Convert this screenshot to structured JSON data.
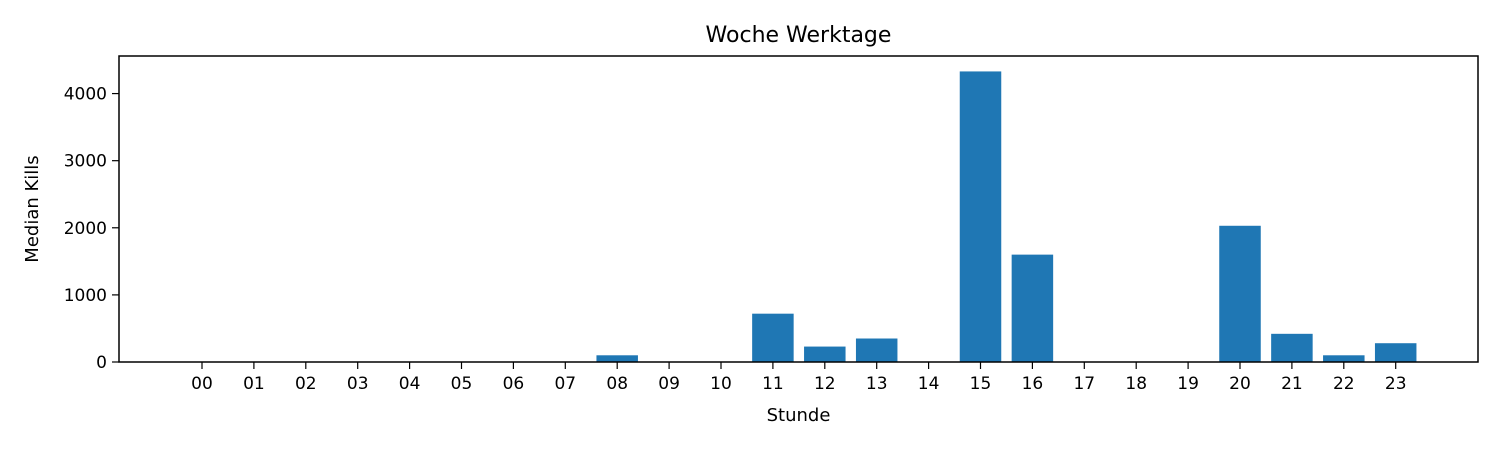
{
  "chart_data": {
    "type": "bar",
    "title": "Woche Werktage",
    "xlabel": "Stunde",
    "ylabel": "Median Kills",
    "categories": [
      "00",
      "01",
      "02",
      "03",
      "04",
      "05",
      "06",
      "07",
      "08",
      "09",
      "10",
      "11",
      "12",
      "13",
      "14",
      "15",
      "16",
      "17",
      "18",
      "19",
      "20",
      "21",
      "22",
      "23"
    ],
    "values": [
      0,
      0,
      0,
      0,
      0,
      0,
      0,
      0,
      100,
      0,
      0,
      720,
      230,
      350,
      0,
      4330,
      1600,
      0,
      0,
      0,
      2030,
      420,
      100,
      280
    ],
    "ylim": [
      0,
      4560
    ],
    "yticks": [
      0,
      1000,
      2000,
      3000,
      4000
    ],
    "grid": false,
    "bar_color": "#1f77b4"
  }
}
